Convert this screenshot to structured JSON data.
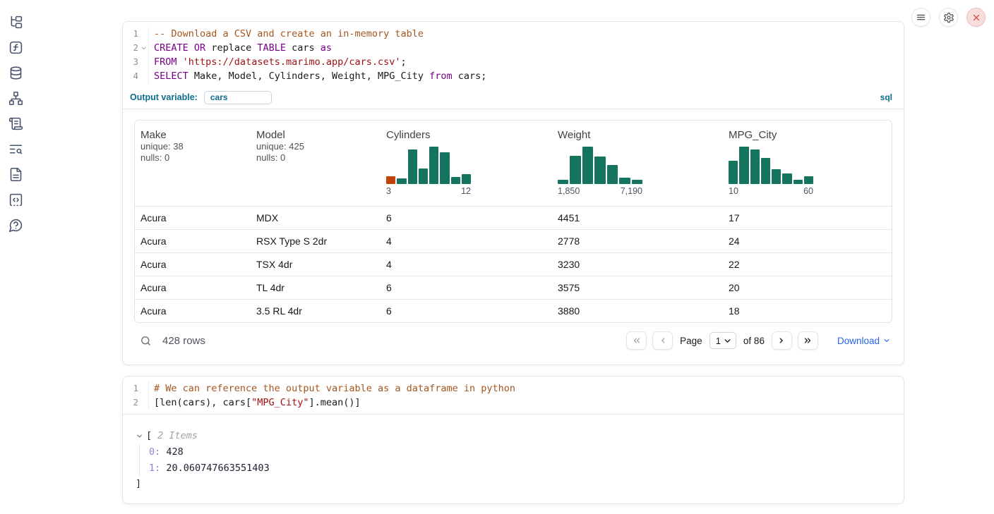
{
  "colors": {
    "hist_bar": "#15745e",
    "hist_highlight": "#c2420d",
    "accent_sql": "#0d6d8c",
    "link_blue": "#2563eb",
    "close_red": "#d24d4d"
  },
  "sidebar": {
    "icons": [
      "file-tree",
      "function-square",
      "database",
      "dependency-graph",
      "scroll-text",
      "logs-search",
      "documentation",
      "snippets",
      "help"
    ]
  },
  "topbar": {
    "buttons": [
      "menu",
      "settings",
      "close"
    ]
  },
  "sql_cell": {
    "language_label": "sql",
    "output_variable_label": "Output variable:",
    "output_variable_value": "cars",
    "lines": [
      {
        "n": "1",
        "tokens": [
          [
            "-- Download a CSV and create an in-memory table",
            "c"
          ]
        ]
      },
      {
        "n": "2",
        "fold": true,
        "tokens": [
          [
            "CREATE",
            "k"
          ],
          [
            " ",
            "p"
          ],
          [
            "OR",
            "k"
          ],
          [
            " replace ",
            "p"
          ],
          [
            "TABLE",
            "k"
          ],
          [
            " cars ",
            "p"
          ],
          [
            "as",
            "k"
          ]
        ]
      },
      {
        "n": "3",
        "tokens": [
          [
            "FROM",
            "k"
          ],
          [
            " ",
            "p"
          ],
          [
            "'https://datasets.marimo.app/cars.csv'",
            "s"
          ],
          [
            ";",
            "p"
          ]
        ]
      },
      {
        "n": "4",
        "tokens": [
          [
            "SELECT",
            "k"
          ],
          [
            " Make, Model, Cylinders, Weight, MPG_City ",
            "p"
          ],
          [
            "from",
            "k"
          ],
          [
            " cars;",
            "p"
          ]
        ]
      }
    ]
  },
  "table": {
    "columns": [
      {
        "name": "Make",
        "stats": [
          "unique: 38",
          "nulls: 0"
        ]
      },
      {
        "name": "Model",
        "stats": [
          "unique: 425",
          "nulls: 0"
        ]
      },
      {
        "name": "Cylinders",
        "histogram": {
          "min_label": "3",
          "max_label": "12",
          "bars": [
            {
              "h": 0.21,
              "highlight": true
            },
            {
              "h": 0.15
            },
            {
              "h": 0.92
            },
            {
              "h": 0.42
            },
            {
              "h": 1
            },
            {
              "h": 0.85
            },
            {
              "h": 0.19
            },
            {
              "h": 0.27
            }
          ]
        }
      },
      {
        "name": "Weight",
        "histogram": {
          "min_label": "1,850",
          "max_label": "7,190",
          "bars": [
            {
              "h": 0.12
            },
            {
              "h": 0.76
            },
            {
              "h": 1
            },
            {
              "h": 0.73
            },
            {
              "h": 0.5
            },
            {
              "h": 0.17
            },
            {
              "h": 0.12
            }
          ]
        }
      },
      {
        "name": "MPG_City",
        "histogram": {
          "min_label": "10",
          "max_label": "60",
          "bars": [
            {
              "h": 0.62
            },
            {
              "h": 1
            },
            {
              "h": 0.93
            },
            {
              "h": 0.7
            },
            {
              "h": 0.4
            },
            {
              "h": 0.29
            },
            {
              "h": 0.11
            },
            {
              "h": 0.2
            }
          ]
        }
      }
    ],
    "rows": [
      [
        "Acura",
        "MDX",
        "6",
        "4451",
        "17"
      ],
      [
        "Acura",
        "RSX Type S 2dr",
        "4",
        "2778",
        "24"
      ],
      [
        "Acura",
        "TSX 4dr",
        "4",
        "3230",
        "22"
      ],
      [
        "Acura",
        "TL 4dr",
        "6",
        "3575",
        "20"
      ],
      [
        "Acura",
        "3.5 RL 4dr",
        "6",
        "3880",
        "18"
      ]
    ],
    "footer": {
      "row_count": "428 rows",
      "page_label": "Page",
      "page_value": "1",
      "of_label": "of 86",
      "download_label": "Download"
    }
  },
  "python_cell": {
    "lines": [
      {
        "n": "1",
        "tokens": [
          [
            "# We can reference the output variable as a dataframe in python",
            "c"
          ]
        ]
      },
      {
        "n": "2",
        "tokens": [
          [
            "[len(cars), cars[",
            "p"
          ],
          [
            "\"MPG_City\"",
            "s"
          ],
          [
            "].mean()]",
            "p"
          ]
        ]
      }
    ],
    "output": {
      "open_bracket": "[",
      "items_label": "2 Items",
      "items": [
        {
          "key": "0:",
          "value": "428"
        },
        {
          "key": "1:",
          "value": "20.060747663551403"
        }
      ],
      "close_bracket": "]"
    }
  }
}
